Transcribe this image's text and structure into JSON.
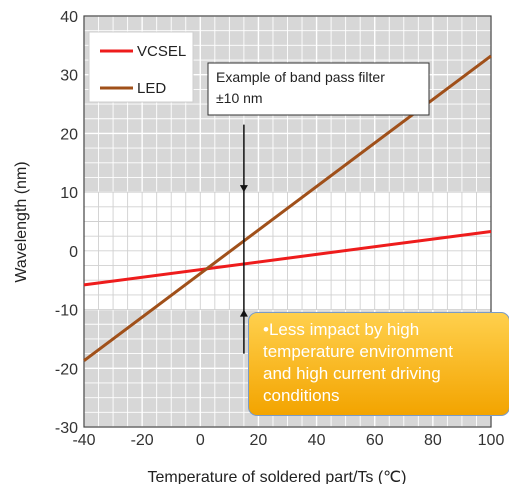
{
  "chart_data": {
    "type": "line",
    "xlabel": "Temperature of soldered part/Ts (℃)",
    "ylabel": "Wavelength (nm)",
    "xlim": [
      -40,
      100
    ],
    "ylim": [
      -30,
      40
    ],
    "xticks": [
      -40,
      -20,
      0,
      20,
      40,
      60,
      80,
      100
    ],
    "yticks": [
      -30,
      -20,
      -10,
      0,
      10,
      20,
      30,
      40
    ],
    "grid": true,
    "legend_position": "top-left",
    "series": [
      {
        "name": "VCSEL",
        "color": "#ee1c1c",
        "x": [
          -40,
          100
        ],
        "y": [
          -5.8,
          3.3
        ]
      },
      {
        "name": "LED",
        "color": "#a0501a",
        "x": [
          -40,
          100
        ],
        "y": [
          -18.7,
          33.2
        ]
      }
    ],
    "annotations": {
      "band_pass_filter": {
        "title": "Example of band pass filter",
        "range": "±10 nm",
        "x": 15,
        "arrow_top": 10,
        "arrow_bottom": -10,
        "line_ends": [
          21.5,
          -17.5
        ]
      },
      "callout_lines": [
        "•Less impact by high",
        "temperature environment",
        "and high current driving",
        "conditions"
      ]
    },
    "shading": {
      "gray_color": "#d7d7d7",
      "white_band": [
        -10,
        10
      ]
    }
  }
}
